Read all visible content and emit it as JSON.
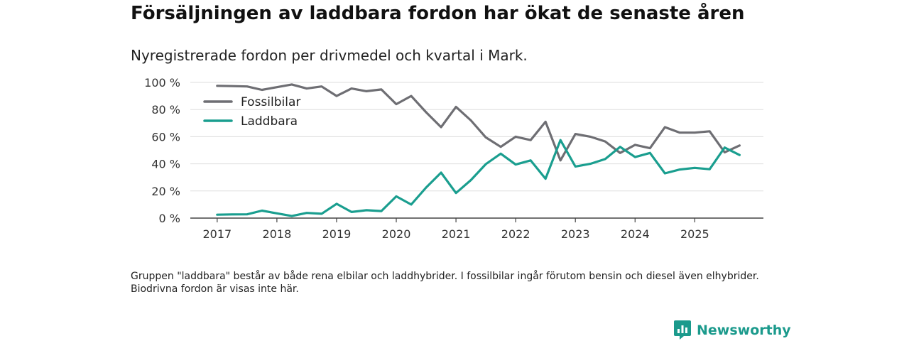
{
  "header": {
    "title": "Försäljningen av laddbara fordon har ökat de senaste åren",
    "subtitle": "Nyregistrerade fordon per drivmedel och kvartal i Mark."
  },
  "note": "Gruppen \"laddbara\" består av både rena elbilar och laddhybrider. I fossilbilar ingår förutom bensin och diesel även elhybrider. Biodrivna fordon är visas inte här.",
  "brand": {
    "name": "Newsworthy",
    "icon": "newsworthy-logo-icon",
    "color": "#1b9a8c"
  },
  "chart_data": {
    "type": "line",
    "title": "Försäljningen av laddbara fordon har ökat de senaste åren",
    "subtitle": "Nyregistrerade fordon per drivmedel och kvartal i Mark.",
    "xlabel": "",
    "ylabel": "",
    "x": [
      2017.0,
      2017.25,
      2017.5,
      2017.75,
      2018.0,
      2018.25,
      2018.5,
      2018.75,
      2019.0,
      2019.25,
      2019.5,
      2019.75,
      2020.0,
      2020.25,
      2020.5,
      2020.75,
      2021.0,
      2021.25,
      2021.5,
      2021.75,
      2022.0,
      2022.25,
      2022.5,
      2022.75,
      2023.0,
      2023.25,
      2023.5,
      2023.75,
      2024.0,
      2024.25,
      2024.5,
      2024.75,
      2025.0,
      2025.25,
      2025.5,
      2025.75
    ],
    "series": [
      {
        "name": "Fossilbilar",
        "color": "#6e6e73",
        "values": [
          97.5,
          97.3,
          97.0,
          94.5,
          96.5,
          98.5,
          95.5,
          97.0,
          90.0,
          95.5,
          93.5,
          94.8,
          84.0,
          90.0,
          78.0,
          67.0,
          82.0,
          72.0,
          59.5,
          52.5,
          60.0,
          57.5,
          71.0,
          42.5,
          62.0,
          60.0,
          56.5,
          48.0,
          54.0,
          51.5,
          67.0,
          63.0,
          63.0,
          64.0,
          48.5,
          53.5
        ]
      },
      {
        "name": "Laddbara",
        "color": "#1a9e8f",
        "values": [
          2.5,
          2.7,
          2.8,
          5.5,
          3.5,
          1.5,
          3.8,
          3.2,
          10.5,
          4.5,
          5.8,
          5.2,
          16.0,
          10.0,
          22.5,
          33.5,
          18.5,
          28.0,
          39.8,
          47.5,
          39.5,
          42.5,
          29.0,
          57.5,
          38.0,
          40.0,
          43.5,
          52.5,
          45.0,
          48.0,
          33.0,
          35.8,
          37.0,
          36.0,
          52.0,
          46.5
        ]
      }
    ],
    "xticks": [
      2017,
      2018,
      2019,
      2020,
      2021,
      2022,
      2023,
      2024,
      2025
    ],
    "xtick_labels": [
      "2017",
      "2018",
      "2019",
      "2020",
      "2021",
      "2022",
      "2023",
      "2024",
      "2025"
    ],
    "yticks": [
      0,
      20,
      40,
      60,
      80,
      100
    ],
    "ytick_labels": [
      "0 %",
      "20 %",
      "40 %",
      "60 %",
      "80 %",
      "100 %"
    ],
    "ylim": [
      0,
      100
    ],
    "xlim": [
      2016.55,
      2026.15
    ],
    "grid": true,
    "legend_position": "top-left"
  }
}
